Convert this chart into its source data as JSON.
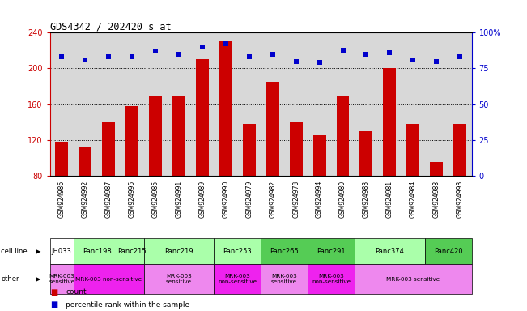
{
  "title": "GDS4342 / 202420_s_at",
  "samples": [
    "GSM924986",
    "GSM924992",
    "GSM924987",
    "GSM924995",
    "GSM924985",
    "GSM924991",
    "GSM924989",
    "GSM924990",
    "GSM924979",
    "GSM924982",
    "GSM924978",
    "GSM924994",
    "GSM924980",
    "GSM924983",
    "GSM924981",
    "GSM924984",
    "GSM924988",
    "GSM924993"
  ],
  "counts": [
    118,
    112,
    140,
    158,
    170,
    170,
    210,
    230,
    138,
    185,
    140,
    125,
    170,
    130,
    200,
    138,
    95,
    138
  ],
  "percentiles": [
    83,
    81,
    83,
    83,
    87,
    85,
    90,
    92,
    83,
    85,
    80,
    79,
    88,
    85,
    86,
    81,
    80,
    83
  ],
  "cell_lines": [
    {
      "name": "JH033",
      "start": 0,
      "end": 1,
      "color": "#ffffff"
    },
    {
      "name": "Panc198",
      "start": 1,
      "end": 3,
      "color": "#aaffaa"
    },
    {
      "name": "Panc215",
      "start": 3,
      "end": 4,
      "color": "#aaffaa"
    },
    {
      "name": "Panc219",
      "start": 4,
      "end": 7,
      "color": "#aaffaa"
    },
    {
      "name": "Panc253",
      "start": 7,
      "end": 9,
      "color": "#aaffaa"
    },
    {
      "name": "Panc265",
      "start": 9,
      "end": 11,
      "color": "#55cc55"
    },
    {
      "name": "Panc291",
      "start": 11,
      "end": 13,
      "color": "#55cc55"
    },
    {
      "name": "Panc374",
      "start": 13,
      "end": 16,
      "color": "#aaffaa"
    },
    {
      "name": "Panc420",
      "start": 16,
      "end": 18,
      "color": "#55cc55"
    }
  ],
  "other_groups": [
    {
      "label": "MRK-003\nsensitive",
      "start": 0,
      "end": 1,
      "color": "#ee88ee"
    },
    {
      "label": "MRK-003 non-sensitive",
      "start": 1,
      "end": 4,
      "color": "#ee22ee"
    },
    {
      "label": "MRK-003\nsensitive",
      "start": 4,
      "end": 7,
      "color": "#ee88ee"
    },
    {
      "label": "MRK-003\nnon-sensitive",
      "start": 7,
      "end": 9,
      "color": "#ee22ee"
    },
    {
      "label": "MRK-003\nsensitive",
      "start": 9,
      "end": 11,
      "color": "#ee88ee"
    },
    {
      "label": "MRK-003\nnon-sensitive",
      "start": 11,
      "end": 13,
      "color": "#ee22ee"
    },
    {
      "label": "MRK-003 sensitive",
      "start": 13,
      "end": 18,
      "color": "#ee88ee"
    }
  ],
  "ylim_left": [
    80,
    240
  ],
  "ylim_right": [
    0,
    100
  ],
  "yticks_left": [
    80,
    120,
    160,
    200,
    240
  ],
  "yticks_right": [
    0,
    25,
    50,
    75,
    100
  ],
  "bar_color": "#cc0000",
  "dot_color": "#0000cc",
  "chart_bg": "#d8d8d8",
  "left_axis_color": "#cc0000",
  "right_axis_color": "#0000cc",
  "fig_w": 6.51,
  "fig_h": 3.84
}
